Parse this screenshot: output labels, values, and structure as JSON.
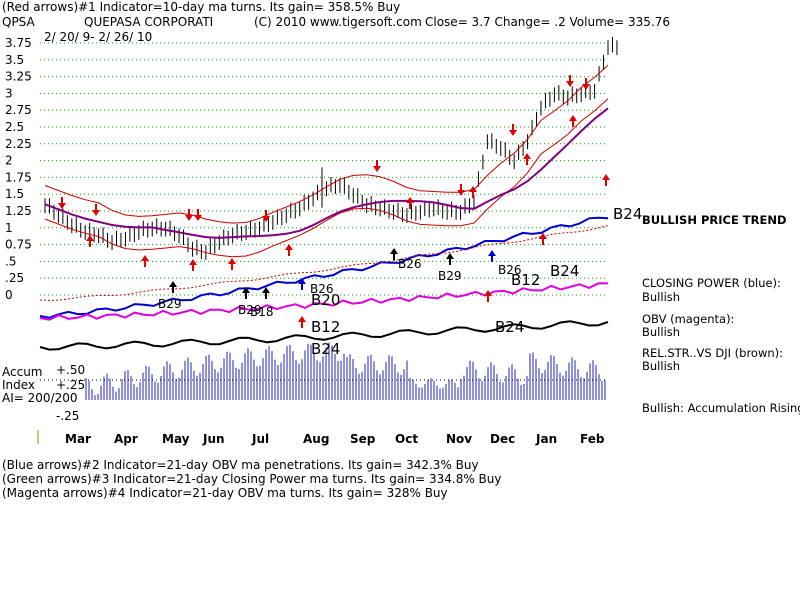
{
  "header": {
    "line1": "(Red arrows)#1 Indicator=10-day ma turns. Its gain= 358.5% Buy",
    "symbol": "QPSA",
    "company": "QUEPASA CORPORATI",
    "copyright": "(C) 2010 www.tigersoft.com",
    "close": "Close=  3.7  Change= .2 Volume= 335.76",
    "daterange": "2/ 20/ 9- 2/ 26/ 10"
  },
  "footer": {
    "line1": "(Blue arrows)#2 Indicator=21-day OBV ma penetrations. Its gain= 342.3% Buy",
    "line2": "(Green arrows)#3 Indicator=21-day Closing Power ma turns. Its gain= 334.8% Buy",
    "line3": "(Magenta arrows)#4 Indicator=21-day OBV ma turns. Its gain= 328% Buy"
  },
  "side": {
    "trend": "BULLISH PRICE TREND",
    "cp_title": "CLOSING POWER (blue):",
    "cp_value": "Bullish",
    "obv_title": "OBV (magenta):",
    "obv_value": "Bullish",
    "rs_title": "REL.STR..VS DJI (brown):",
    "rs_value": "Bullish",
    "accum_note": "Bullish: Accumulation Rising"
  },
  "accum": {
    "title1": "Accum",
    "title2": "Index",
    "ai": "AI= 200/200",
    "tick_p50": "+.50",
    "tick_p25": "+.25",
    "tick_m25": "-.25"
  },
  "signals": {
    "b24_right": "B24",
    "b20": "B20",
    "b12_a": "B12",
    "b24_mid": "B24",
    "b12_b": "B12",
    "b24_c": "B24",
    "b24_d": "B24",
    "b26_a": "B26",
    "b29_a": "B29",
    "b26_b": "B26",
    "b26_c": "B26",
    "b29_b": "B29",
    "b29_c": "B29",
    "b18": "B18"
  },
  "chart_data": {
    "type": "line",
    "title": "QPSA QUEPASA CORPORATI",
    "ylim": [
      0,
      3.75
    ],
    "y_ticks": [
      "3.75",
      "3.5",
      "3.25",
      "3",
      "2.75",
      "2.5",
      "2.25",
      "2",
      "1.75",
      "1.5",
      "1.25",
      "1",
      "0.75",
      ".5",
      ".25",
      "0"
    ],
    "months": [
      "Mar",
      "Apr",
      "May",
      "Jun",
      "Jul",
      "Aug",
      "Sep",
      "Oct",
      "Nov",
      "Dec",
      "Jan",
      "Feb"
    ],
    "price_close": [
      1.35,
      1.2,
      1.05,
      0.95,
      0.9,
      0.8,
      0.85,
      0.95,
      1.0,
      1.0,
      0.9,
      0.7,
      0.65,
      0.8,
      0.9,
      0.95,
      1.0,
      1.1,
      1.2,
      1.3,
      1.45,
      1.6,
      1.65,
      1.5,
      1.35,
      1.3,
      1.25,
      1.2,
      1.25,
      1.3,
      1.25,
      1.25,
      1.4,
      2.3,
      2.2,
      2.0,
      2.3,
      2.8,
      3.0,
      2.95,
      3.0,
      3.05,
      3.7
    ],
    "colors": {
      "price": "#000000",
      "bands": "#cc0000",
      "ma": "#800080",
      "closing_power": "#0000cc",
      "obv": "#e000e0",
      "rel_strength": "#000000",
      "accum_bars": "#2020c0",
      "arrows_red": "#e00000",
      "grid": "#00aa00"
    }
  }
}
